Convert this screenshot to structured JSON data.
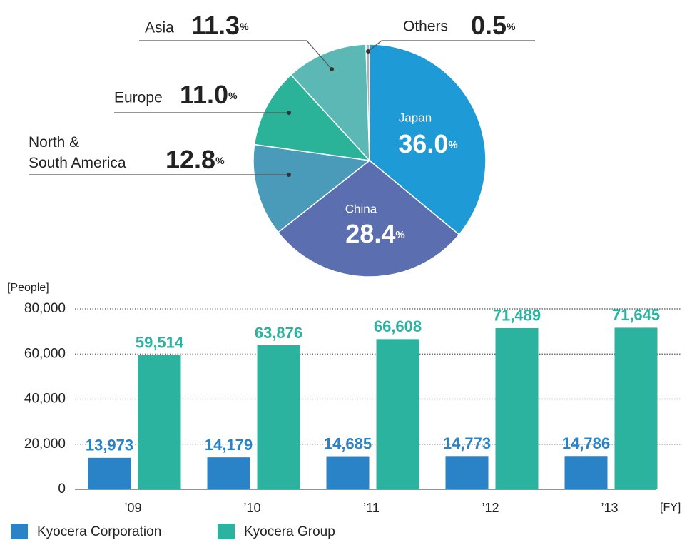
{
  "chart_data": [
    {
      "type": "pie",
      "categories": [
        "Japan",
        "China",
        "North & South America",
        "Europe",
        "Asia",
        "Others"
      ],
      "values": [
        36.0,
        28.4,
        12.8,
        11.0,
        11.3,
        0.5
      ],
      "value_labels": [
        "36.0%",
        "28.4%",
        "12.8%",
        "11.0%",
        "11.3%",
        "0.5%"
      ],
      "colors": [
        "#1e9ad6",
        "#5b6fb0",
        "#4a9bba",
        "#2bb39a",
        "#5bb8b5",
        "#b0b0b0"
      ]
    },
    {
      "type": "bar",
      "y_label": "[People]",
      "x_label": "[FY]",
      "categories": [
        "’09",
        "’10",
        "’11",
        "’12",
        "’13"
      ],
      "series": [
        {
          "name": "Kyocera Corporation",
          "color": "#2a83c6",
          "values": [
            13973,
            14179,
            14685,
            14773,
            14786
          ],
          "value_labels": [
            "13,973",
            "14,179",
            "14,685",
            "14,773",
            "14,786"
          ]
        },
        {
          "name": "Kyocera Group",
          "color": "#2bb3a0",
          "values": [
            59514,
            63876,
            66608,
            71489,
            71645
          ],
          "value_labels": [
            "59,514",
            "63,876",
            "66,608",
            "71,489",
            "71,645"
          ]
        }
      ],
      "ylim": [
        0,
        80000
      ],
      "yticks": [
        0,
        {
          "value": 20000,
          "label": "20,000"
        },
        {
          "value": 40000,
          "label": "40,000"
        },
        {
          "value": 60000,
          "label": "60,000"
        },
        {
          "value": 80000,
          "label": "80,000"
        }
      ],
      "grid": true
    }
  ]
}
